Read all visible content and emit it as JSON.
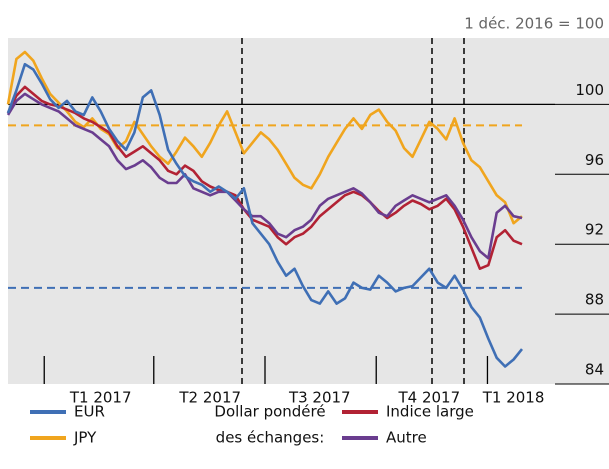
{
  "chart_data": {
    "type": "line",
    "unit_label": "1 déc. 2016 = 100",
    "categories": [
      null,
      null,
      null,
      null,
      null,
      null,
      null,
      null,
      null,
      null,
      null,
      "T1 2017",
      null,
      null,
      null,
      null,
      null,
      null,
      null,
      null,
      null,
      null,
      null,
      null,
      "T2 2017",
      null,
      null,
      null,
      null,
      null,
      null,
      null,
      null,
      null,
      null,
      null,
      null,
      "T3 2017",
      null,
      null,
      null,
      null,
      null,
      null,
      null,
      null,
      null,
      null,
      null,
      null,
      "T4 2017",
      null,
      null,
      null,
      null,
      null,
      null,
      null,
      null,
      null,
      "T1 2018",
      null
    ],
    "series": [
      {
        "name": "EUR",
        "color": "#3f6fb5",
        "values": [
          99.5,
          100.8,
          102.3,
          102.0,
          101.2,
          100.3,
          99.8,
          100.2,
          99.6,
          99.4,
          100.4,
          99.6,
          98.6,
          97.9,
          97.4,
          98.4,
          100.4,
          100.8,
          99.4,
          97.4,
          96.6,
          95.9,
          95.6,
          95.4,
          95.0,
          95.3,
          95.0,
          94.6,
          95.2,
          93.2,
          92.6,
          92.0,
          91.0,
          90.2,
          90.6,
          89.6,
          88.8,
          88.6,
          89.3,
          88.6,
          88.9,
          89.8,
          89.5,
          89.4,
          90.2,
          89.8,
          89.3,
          89.5,
          89.6,
          90.1,
          90.6,
          89.8,
          89.5,
          90.2,
          89.4,
          88.4,
          87.8,
          86.6,
          85.5,
          85.0,
          85.4,
          86.0
        ]
      },
      {
        "name": "JPY",
        "color": "#f0a51e",
        "values": [
          100.0,
          102.6,
          103.0,
          102.5,
          101.5,
          100.6,
          100.1,
          99.6,
          99.0,
          98.7,
          99.2,
          98.6,
          98.3,
          97.5,
          97.9,
          99.0,
          98.3,
          97.6,
          97.0,
          96.6,
          97.3,
          98.1,
          97.6,
          97.0,
          97.8,
          98.8,
          99.6,
          98.4,
          97.2,
          97.8,
          98.4,
          98.0,
          97.4,
          96.6,
          95.8,
          95.4,
          95.2,
          96.0,
          97.0,
          97.8,
          98.6,
          99.2,
          98.6,
          99.4,
          99.7,
          99.0,
          98.5,
          97.5,
          97.0,
          98.0,
          99.0,
          98.6,
          98.0,
          99.2,
          97.8,
          96.8,
          96.4,
          95.6,
          94.8,
          94.4,
          93.2,
          93.6
        ]
      },
      {
        "name": "Indice large",
        "color": "#b22234",
        "values": [
          99.5,
          100.5,
          101.0,
          100.6,
          100.2,
          100.0,
          99.9,
          99.7,
          99.5,
          99.2,
          99.0,
          98.7,
          98.4,
          97.6,
          97.0,
          97.3,
          97.6,
          97.2,
          96.8,
          96.2,
          96.0,
          96.5,
          96.2,
          95.6,
          95.3,
          95.1,
          95.0,
          94.8,
          94.0,
          93.4,
          93.2,
          93.0,
          92.4,
          92.0,
          92.4,
          92.6,
          93.0,
          93.6,
          94.0,
          94.4,
          94.8,
          95.0,
          94.8,
          94.4,
          93.9,
          93.5,
          93.8,
          94.2,
          94.5,
          94.3,
          94.0,
          94.2,
          94.6,
          94.0,
          93.0,
          91.8,
          90.6,
          90.8,
          92.4,
          92.8,
          92.2,
          92.0
        ]
      },
      {
        "name": "Autre",
        "color": "#6a3d8f",
        "values": [
          99.4,
          100.2,
          100.6,
          100.3,
          100.0,
          99.8,
          99.6,
          99.2,
          98.8,
          98.6,
          98.4,
          98.0,
          97.6,
          96.8,
          96.3,
          96.5,
          96.8,
          96.4,
          95.8,
          95.5,
          95.5,
          96.0,
          95.2,
          95.0,
          94.8,
          95.0,
          95.0,
          94.5,
          94.0,
          93.6,
          93.6,
          93.2,
          92.6,
          92.4,
          92.8,
          93.0,
          93.4,
          94.2,
          94.6,
          94.8,
          95.0,
          95.2,
          94.9,
          94.4,
          93.8,
          93.6,
          94.2,
          94.5,
          94.8,
          94.6,
          94.4,
          94.6,
          94.8,
          94.2,
          93.4,
          92.4,
          91.6,
          91.2,
          93.8,
          94.2,
          93.6,
          93.5
        ]
      }
    ],
    "legend_group_label": [
      "Dollar pondéré",
      "des échanges:"
    ],
    "reference_lines": [
      {
        "value": 100,
        "color": "#000000",
        "dashed": false
      },
      {
        "value": 98.8,
        "color": "#f0a51e",
        "dashed": true
      },
      {
        "value": 89.5,
        "color": "#3f6fb5",
        "dashed": true
      }
    ],
    "ylim": [
      84,
      103.8
    ],
    "yticks": [
      84,
      88,
      92,
      96,
      100
    ]
  }
}
